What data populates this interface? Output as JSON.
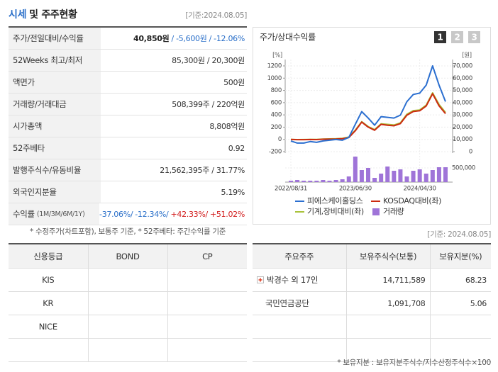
{
  "header": {
    "title_highlight": "시세",
    "title_rest": "및 주주현황",
    "date": "[기준:2024.08.05]"
  },
  "quote_table": {
    "rows": [
      {
        "label": [
          "주가/전일대비/수익률"
        ],
        "value": [
          "40,850원",
          "/ -5,600원",
          "/ -12.06%"
        ]
      },
      {
        "label": [
          "52Weeks 최고/최저"
        ],
        "value": [
          "85,300원 / 20,300원"
        ]
      },
      {
        "label": [
          "액면가"
        ],
        "value": [
          "500원"
        ]
      },
      {
        "label": [
          "거래량/거래대금"
        ],
        "value": [
          "508,399주 / 220억원"
        ]
      },
      {
        "label": [
          "시가총액"
        ],
        "value": [
          "8,808억원"
        ]
      },
      {
        "label": [
          "52주베타"
        ],
        "value": [
          "0.92"
        ]
      },
      {
        "label": [
          "발행주식수/유동비율"
        ],
        "value": [
          "21,562,395주 / 31.77%"
        ]
      },
      {
        "label": [
          "외국인지분율"
        ],
        "value": [
          "5.19%"
        ]
      },
      {
        "label": [
          "수익률",
          "(1M/3M/6M/1Y)"
        ],
        "value": [
          "-37.06%/",
          "-12.34%/",
          "+42.33%/",
          "+51.02%"
        ]
      }
    ],
    "note": "* 수정주가(차트포함), 보통주 기준, * 52주베타: 주간수익률 기준"
  },
  "chart_panel": {
    "buttons": [
      "1",
      "2",
      "3"
    ]
  },
  "chart_data": {
    "type": "line",
    "title": "주가/상대수익률",
    "y_label": "[%]",
    "y2_label": "[원]",
    "categories": [
      "2022/08/31",
      null,
      null,
      null,
      null,
      null,
      null,
      null,
      null,
      null,
      "2023/06/30",
      null,
      null,
      null,
      null,
      null,
      null,
      null,
      null,
      null,
      "2024/04/30",
      null,
      null,
      null,
      null
    ],
    "ylim": [
      -200,
      1200
    ],
    "yticks": [
      -200,
      0,
      200,
      400,
      600,
      800,
      1000,
      1200
    ],
    "y2lim": [
      0,
      70000
    ],
    "y2ticks": [
      0,
      {
        "value": 10000,
        "label": "10,000"
      },
      {
        "value": 20000,
        "label": "20,000"
      },
      {
        "value": 30000,
        "label": "30,000"
      },
      {
        "value": 40000,
        "label": "40,000"
      },
      {
        "value": 50000,
        "label": "50,000"
      },
      {
        "value": 60000,
        "label": "60,000"
      },
      {
        "value": 70000,
        "label": "70,000"
      }
    ],
    "y3lim": [
      0,
      950000
    ],
    "y3ticks": [
      {
        "value": 500000,
        "label": "500,000"
      }
    ],
    "grid": true,
    "series": [
      {
        "name": "피에스케이홀딩스",
        "color": "#2b6fd0",
        "axis": "y2",
        "values": [
          8750,
          7000,
          7000,
          8200,
          7600,
          8750,
          9300,
          9900,
          9300,
          11700,
          22200,
          32700,
          27400,
          21600,
          28600,
          28000,
          27400,
          29800,
          40800,
          46700,
          47800,
          54300,
          70000,
          54300,
          40850
        ]
      },
      {
        "name": "KOSDAQ대비(좌)",
        "color": "#cc2a10",
        "values": [
          0,
          -5,
          -4,
          -2,
          -3,
          2,
          4,
          6,
          12,
          30,
          140,
          282,
          200,
          150,
          245,
          232,
          222,
          258,
          395,
          455,
          468,
          545,
          745,
          548,
          420
        ]
      },
      {
        "name": "기계,장비대비(좌)",
        "color": "#a9c23a",
        "values": [
          0,
          -3,
          -2,
          0,
          -1,
          5,
          8,
          10,
          18,
          38,
          150,
          290,
          210,
          160,
          255,
          245,
          235,
          270,
          410,
          470,
          480,
          560,
          760,
          570,
          440
        ]
      },
      {
        "name": "거래량",
        "color": "#9f74d8",
        "type": "bar",
        "axis": "y3",
        "values": [
          50000,
          75000,
          50000,
          50000,
          50000,
          75000,
          50000,
          75000,
          100000,
          200000,
          900000,
          425000,
          500000,
          150000,
          300000,
          550000,
          400000,
          450000,
          200000,
          400000,
          450000,
          300000,
          425000,
          525000,
          525000
        ]
      }
    ]
  },
  "credit_table": {
    "header": [
      "신용등급",
      "BOND",
      "CP"
    ],
    "rows": [
      [
        "KIS"
      ],
      [
        "KR"
      ],
      [
        "NICE"
      ]
    ]
  },
  "shareholders": {
    "date": "[기준: 2024.08.05]",
    "header": [
      "주요주주",
      "보유주식수(보통)",
      "보유지분(%)"
    ],
    "rows": [
      [
        "박경수 외 17인",
        "14,711,589",
        "68.23"
      ],
      [
        "국민연금공단",
        "1,091,708",
        "5.06"
      ]
    ],
    "note": "* 보유지분 : 보유지분주식수/지수산정주식수×100"
  }
}
